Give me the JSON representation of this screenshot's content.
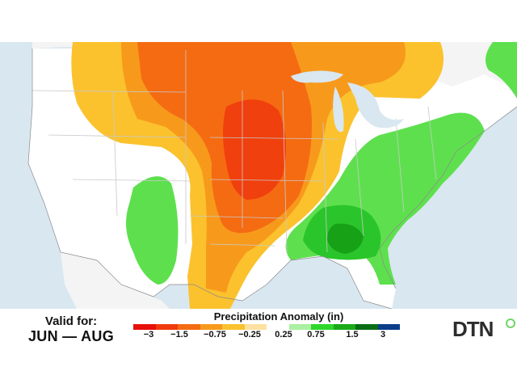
{
  "footer": {
    "valid_label": "Valid for:",
    "valid_range": "JUN — AUG"
  },
  "legend": {
    "title": "Precipitation Anomaly (in)",
    "ticks": [
      "−3",
      "−1.5",
      "−0.75",
      "−0.25",
      "0.25",
      "0.75",
      "1.5",
      "3"
    ],
    "colors": [
      "#e8100a",
      "#f03a0d",
      "#f56b12",
      "#f79a1c",
      "#fbc22e",
      "#fde1a0",
      "#ffffff",
      "#a9f0a0",
      "#2ed72a",
      "#1aaa1a",
      "#0a6e14",
      "#0a3d8a"
    ]
  },
  "brand": {
    "logo_text": "DTN"
  },
  "map_colors": {
    "ocean": "#d9e7f1",
    "land": "#ffffff",
    "neighbor_land": "#f4f4f4",
    "dry_light": "#fbc22e",
    "dry_moderate": "#f79a1c",
    "dry_strong": "#f56b12",
    "dry_severe": "#f0400d",
    "wet_light": "#5ee04e",
    "wet_moderate": "#2ac52a",
    "wet_strong": "#17a117",
    "wet_severe": "#0d6b12"
  }
}
